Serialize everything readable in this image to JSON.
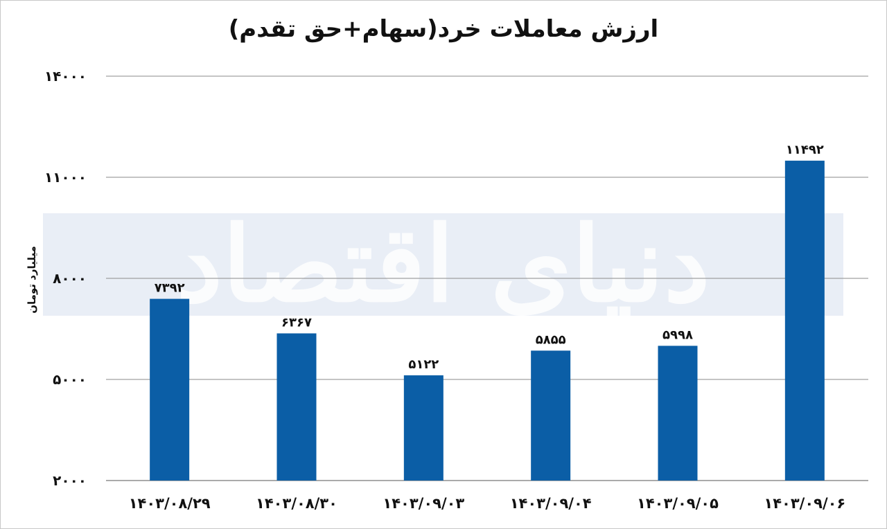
{
  "chart_data": {
    "type": "bar",
    "title": "ارزش معاملات خرد(سهام+حق تقدم)",
    "ylabel": "میلیارد تومان",
    "xlabel": "",
    "categories": [
      "۱۴۰۳/۰۸/۲۹",
      "۱۴۰۳/۰۸/۳۰",
      "۱۴۰۳/۰۹/۰۳",
      "۱۴۰۳/۰۹/۰۴",
      "۱۴۰۳/۰۹/۰۵",
      "۱۴۰۳/۰۹/۰۶"
    ],
    "values": [
      7392,
      6367,
      5122,
      5855,
      5998,
      11492
    ],
    "value_labels": [
      "۷۳۹۲",
      "۶۳۶۷",
      "۵۱۲۲",
      "۵۸۵۵",
      "۵۹۹۸",
      "۱۱۴۹۲"
    ],
    "yticks": [
      2000,
      5000,
      8000,
      11000,
      14000
    ],
    "ytick_labels": [
      "۲۰۰۰",
      "۵۰۰۰",
      "۸۰۰۰",
      "۱۱۰۰۰",
      "۱۴۰۰۰"
    ],
    "ylim": [
      2000,
      14000
    ],
    "grid": true,
    "legend": "none",
    "bar_color": "#0b5ea6",
    "grid_color": "#8a8a8a"
  },
  "watermark": "دنیای اقتصاد"
}
